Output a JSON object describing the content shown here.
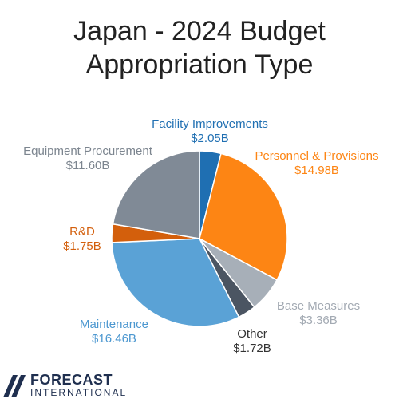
{
  "title": {
    "line1": "Japan - 2024 Budget",
    "line2": "Appropriation Type"
  },
  "chart_data": {
    "type": "pie",
    "title": "Japan - 2024 Budget Appropriation Type",
    "slices": [
      {
        "label": "Facility Improvements",
        "value": 2.05,
        "value_label": "$2.05B",
        "color": "#1f6fb2"
      },
      {
        "label": "Personnel & Provisions",
        "value": 14.98,
        "value_label": "$14.98B",
        "color": "#fd8514"
      },
      {
        "label": "Base Measures",
        "value": 3.36,
        "value_label": "$3.36B",
        "color": "#a7afb8"
      },
      {
        "label": "Other",
        "value": 1.72,
        "value_label": "$1.72B",
        "color": "#4b5562"
      },
      {
        "label": "Maintenance",
        "value": 16.46,
        "value_label": "$16.46B",
        "color": "#5aa2d6"
      },
      {
        "label": "R&D",
        "value": 1.75,
        "value_label": "$1.75B",
        "color": "#d35f0c"
      },
      {
        "label": "Equipment Procurement",
        "value": 11.6,
        "value_label": "$11.60B",
        "color": "#808a96"
      }
    ],
    "label_colors": {
      "Facility Improvements": "#1f6fb2",
      "Personnel & Provisions": "#fd8514",
      "Base Measures": "#a3aab3",
      "Other": "#333333",
      "Maintenance": "#4b97d0",
      "R&D": "#d35f0c",
      "Equipment Procurement": "#7c858f"
    }
  },
  "logo": {
    "line1": "FORECAST",
    "line2": "INTERNATIONAL",
    "color": "#1f2f4f"
  }
}
